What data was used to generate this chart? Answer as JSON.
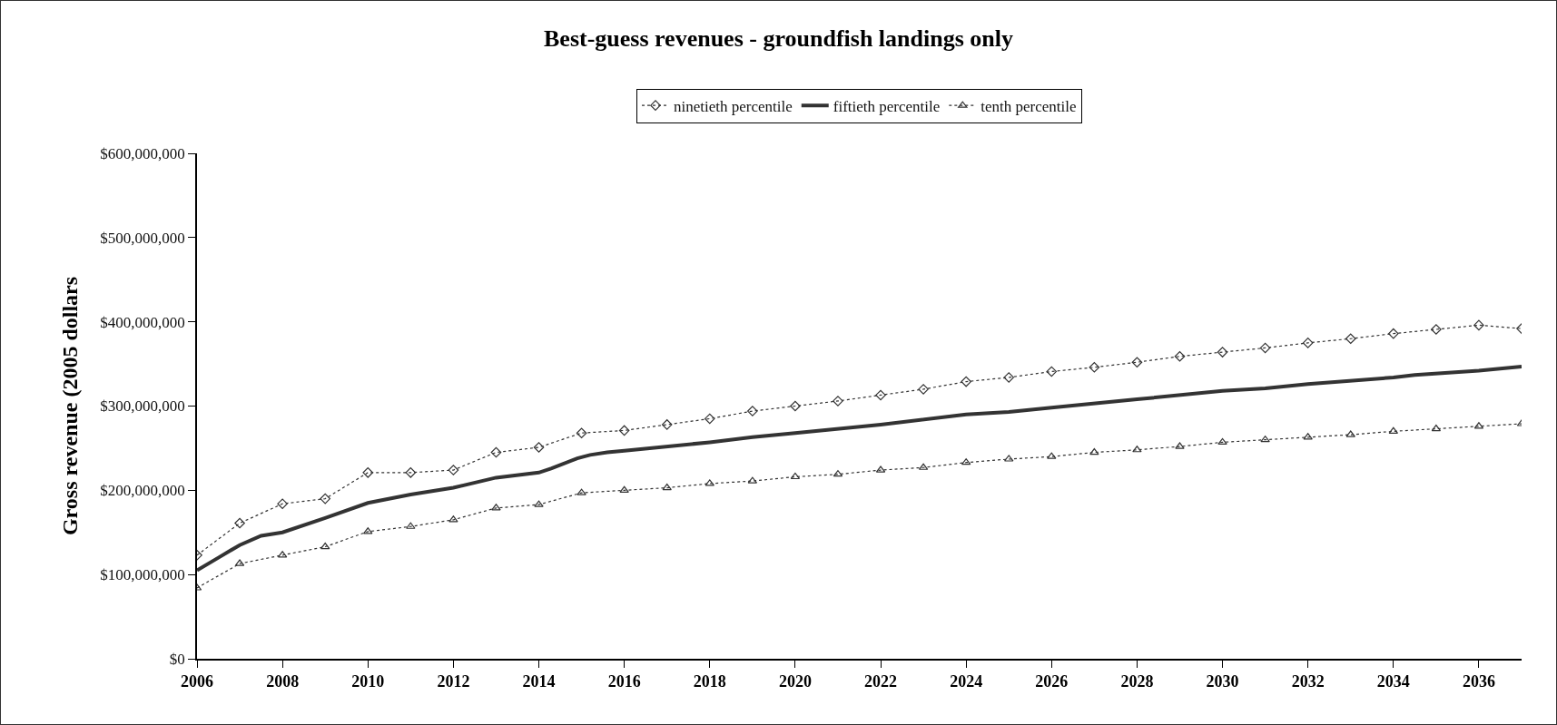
{
  "chart_data": {
    "type": "line",
    "title": "Best-guess revenues - groundfish landings only",
    "ylabel": "Gross revenue (2005 dollars",
    "xlim": [
      2006,
      2037
    ],
    "xticks": [
      2006,
      2008,
      2010,
      2012,
      2014,
      2016,
      2018,
      2020,
      2022,
      2024,
      2026,
      2028,
      2030,
      2032,
      2034,
      2036
    ],
    "ylim": [
      0,
      600000000
    ],
    "yticks": [
      {
        "value": 0,
        "label": "$0"
      },
      {
        "value": 100000000,
        "label": "$100,000,000"
      },
      {
        "value": 200000000,
        "label": "$200,000,000"
      },
      {
        "value": 300000000,
        "label": "$300,000,000"
      },
      {
        "value": 400000000,
        "label": "$400,000,000"
      },
      {
        "value": 500000000,
        "label": "$500,000,000"
      },
      {
        "value": 600000000,
        "label": "$600,000,000"
      }
    ],
    "grid": false,
    "legend": "top",
    "series": [
      {
        "name": "ninetieth percentile",
        "color": "#333333",
        "marker": "diamond",
        "line_style": "dotted",
        "x": [
          2006,
          2007,
          2008,
          2009,
          2010,
          2011,
          2012,
          2013,
          2014,
          2015,
          2016,
          2017,
          2018,
          2019,
          2020,
          2021,
          2022,
          2023,
          2024,
          2025,
          2026,
          2027,
          2028,
          2029,
          2030,
          2031,
          2032,
          2033,
          2034,
          2035,
          2036,
          2037
        ],
        "values": [
          123000000,
          161000000,
          184000000,
          190000000,
          221000000,
          221000000,
          224000000,
          245000000,
          251000000,
          268000000,
          271000000,
          278000000,
          285000000,
          294000000,
          300000000,
          306000000,
          313000000,
          320000000,
          329000000,
          334000000,
          341000000,
          346000000,
          352000000,
          359000000,
          364000000,
          369000000,
          375000000,
          380000000,
          386000000,
          391000000,
          396000000,
          392000000
        ]
      },
      {
        "name": "fiftieth percentile",
        "color": "#333333",
        "marker": "none",
        "line_style": "solid",
        "x": [
          2006,
          2006.5,
          2007,
          2007.5,
          2008,
          2009,
          2010,
          2011,
          2012,
          2013,
          2014,
          2014.3,
          2014.9,
          2015.2,
          2015.6,
          2016,
          2018,
          2019,
          2020,
          2022,
          2024,
          2025,
          2026,
          2028,
          2030,
          2031,
          2032,
          2034,
          2034.5,
          2036,
          2037
        ],
        "values": [
          105000000,
          120000000,
          135000000,
          146000000,
          150000000,
          167000000,
          185000000,
          195000000,
          203000000,
          215000000,
          221000000,
          226000000,
          238000000,
          242000000,
          245000000,
          247000000,
          257000000,
          263000000,
          268000000,
          278000000,
          290000000,
          293000000,
          298000000,
          308000000,
          318000000,
          321000000,
          326000000,
          334000000,
          337000000,
          342000000,
          347000000
        ]
      },
      {
        "name": "tenth percentile",
        "color": "#333333",
        "marker": "triangle",
        "line_style": "dotted",
        "x": [
          2006,
          2007,
          2008,
          2009,
          2010,
          2011,
          2012,
          2013,
          2014,
          2015,
          2016,
          2017,
          2018,
          2019,
          2020,
          2021,
          2022,
          2023,
          2024,
          2025,
          2026,
          2027,
          2028,
          2029,
          2030,
          2031,
          2032,
          2033,
          2034,
          2035,
          2036,
          2037
        ],
        "values": [
          84000000,
          113000000,
          123000000,
          133000000,
          151000000,
          157000000,
          165000000,
          179000000,
          183000000,
          197000000,
          200000000,
          203000000,
          208000000,
          211000000,
          216000000,
          219000000,
          224000000,
          227000000,
          233000000,
          237000000,
          240000000,
          245000000,
          248000000,
          252000000,
          257000000,
          260000000,
          263000000,
          266000000,
          270000000,
          273000000,
          276000000,
          279000000
        ]
      }
    ]
  }
}
